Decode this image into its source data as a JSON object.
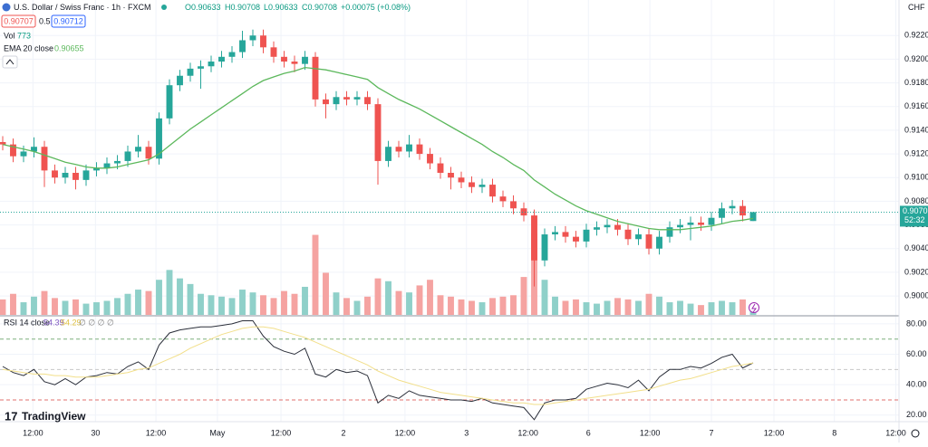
{
  "header": {
    "symbol": "U.S. Dollar / Swiss Franc · 1h · FXCM",
    "ohlc": [
      "O0.90633",
      "H0.90708",
      "L0.90633",
      "C0.90708"
    ],
    "change": "+0.00075 (+0.08%)",
    "bid": "0.90707",
    "spread": "0.5",
    "ask": "0.90712",
    "currency": "CHF",
    "countdown": "52:32",
    "rsi_extra": "∅ ∅ ∅ ∅",
    "brand": "TradingView"
  },
  "chart_data": [
    {
      "type": "candlestick",
      "open": [
        0.913,
        0.9128,
        0.9118,
        0.9122,
        0.9126,
        0.9106,
        0.91,
        0.9104,
        0.9098,
        0.9106,
        0.9108,
        0.9112,
        0.9114,
        0.9122,
        0.9126,
        0.9116,
        0.915,
        0.9178,
        0.9186,
        0.9192,
        0.9194,
        0.9198,
        0.9202,
        0.9206,
        0.9216,
        0.922,
        0.921,
        0.9202,
        0.9198,
        0.9196,
        0.9202,
        0.9166,
        0.9162,
        0.9168,
        0.9166,
        0.9168,
        0.9162,
        0.9114,
        0.9126,
        0.9122,
        0.9128,
        0.912,
        0.9112,
        0.9104,
        0.91,
        0.9096,
        0.9092,
        0.9094,
        0.9084,
        0.908,
        0.9074,
        0.9068,
        0.903,
        0.9052,
        0.9054,
        0.905,
        0.9046,
        0.9056,
        0.9058,
        0.906,
        0.9056,
        0.9048,
        0.9052,
        0.904,
        0.905,
        0.9058,
        0.906,
        0.9062,
        0.906,
        0.9066,
        0.9074,
        0.9076,
        0.90633
      ],
      "high": [
        0.9135,
        0.9133,
        0.9127,
        0.9134,
        0.9131,
        0.9111,
        0.9109,
        0.9109,
        0.9111,
        0.9113,
        0.9117,
        0.9119,
        0.9127,
        0.9136,
        0.9131,
        0.9155,
        0.9183,
        0.9191,
        0.9197,
        0.9199,
        0.9203,
        0.9207,
        0.9211,
        0.9224,
        0.9225,
        0.9225,
        0.9215,
        0.9207,
        0.9203,
        0.9207,
        0.9206,
        0.9171,
        0.9173,
        0.9173,
        0.9173,
        0.9173,
        0.9167,
        0.9131,
        0.9131,
        0.9136,
        0.9133,
        0.9125,
        0.9117,
        0.9109,
        0.9105,
        0.9101,
        0.9099,
        0.9099,
        0.9089,
        0.9085,
        0.9079,
        0.9073,
        0.9057,
        0.9059,
        0.9059,
        0.9055,
        0.9061,
        0.9063,
        0.9065,
        0.9065,
        0.9061,
        0.9057,
        0.9057,
        0.9055,
        0.9063,
        0.9065,
        0.9067,
        0.9067,
        0.9071,
        0.9079,
        0.9081,
        0.9081,
        0.90708
      ],
      "low": [
        0.9123,
        0.9113,
        0.9113,
        0.9117,
        0.9092,
        0.9095,
        0.9095,
        0.909,
        0.9093,
        0.9101,
        0.9103,
        0.9107,
        0.9109,
        0.9117,
        0.9111,
        0.9111,
        0.9145,
        0.9173,
        0.9181,
        0.9175,
        0.9189,
        0.9193,
        0.9197,
        0.9201,
        0.9211,
        0.9205,
        0.9197,
        0.9193,
        0.9189,
        0.9191,
        0.916,
        0.915,
        0.9157,
        0.9161,
        0.9161,
        0.9157,
        0.9094,
        0.9109,
        0.9117,
        0.9117,
        0.9115,
        0.9107,
        0.9099,
        0.909,
        0.9091,
        0.9087,
        0.9087,
        0.9079,
        0.9075,
        0.9069,
        0.9063,
        0.9008,
        0.9025,
        0.9047,
        0.9045,
        0.9041,
        0.9041,
        0.9051,
        0.9053,
        0.9051,
        0.9043,
        0.9043,
        0.9035,
        0.9035,
        0.9045,
        0.9053,
        0.9047,
        0.9055,
        0.9055,
        0.9061,
        0.9069,
        0.9063,
        0.90633
      ],
      "close": [
        0.9128,
        0.9118,
        0.9122,
        0.9126,
        0.9106,
        0.91,
        0.9104,
        0.9098,
        0.9106,
        0.9108,
        0.9112,
        0.9114,
        0.9122,
        0.9126,
        0.9116,
        0.915,
        0.9178,
        0.9186,
        0.9192,
        0.9194,
        0.9198,
        0.9202,
        0.9206,
        0.9216,
        0.922,
        0.921,
        0.9202,
        0.9198,
        0.9196,
        0.9202,
        0.9166,
        0.9162,
        0.9168,
        0.9166,
        0.9168,
        0.9162,
        0.9114,
        0.9126,
        0.9122,
        0.9128,
        0.912,
        0.9112,
        0.9104,
        0.91,
        0.9096,
        0.9092,
        0.9094,
        0.9084,
        0.908,
        0.9074,
        0.9068,
        0.903,
        0.9052,
        0.9054,
        0.905,
        0.9046,
        0.9056,
        0.9058,
        0.906,
        0.9056,
        0.9048,
        0.9052,
        0.904,
        0.905,
        0.9058,
        0.906,
        0.9062,
        0.906,
        0.9066,
        0.9074,
        0.9076,
        0.9068,
        0.90708
      ],
      "up_color": "#26a69a",
      "down_color": "#ef5350",
      "volume": {
        "name": "Vol",
        "up_color": "#8fd0c9",
        "down_color": "#f5a3a1",
        "values": [
          1100,
          1500,
          900,
          1300,
          1700,
          1200,
          1000,
          1100,
          800,
          900,
          1000,
          1200,
          1500,
          1800,
          1700,
          2500,
          3200,
          2600,
          2200,
          1500,
          1400,
          1300,
          1200,
          1800,
          1600,
          1400,
          1200,
          1700,
          1500,
          2000,
          5700,
          3000,
          1600,
          1200,
          1000,
          1300,
          2600,
          2400,
          1700,
          1600,
          2100,
          2500,
          1400,
          1300,
          1100,
          1000,
          900,
          1200,
          1300,
          1400,
          2700,
          5800,
          2500,
          1300,
          1000,
          1100,
          900,
          800,
          1000,
          1200,
          1100,
          1000,
          1500,
          1300,
          900,
          1000,
          800,
          700,
          900,
          1000,
          900,
          1100,
          773
        ]
      },
      "series": [
        {
          "name": "EMA 20 close",
          "color": "#5cb85c",
          "values": [
            0.9128,
            0.9126,
            0.9124,
            0.9122,
            0.9119,
            0.9116,
            0.9113,
            0.9111,
            0.9109,
            0.9108,
            0.9108,
            0.9109,
            0.9111,
            0.9113,
            0.9115,
            0.912,
            0.9127,
            0.9134,
            0.9141,
            0.9147,
            0.9153,
            0.9159,
            0.9165,
            0.9171,
            0.9177,
            0.9182,
            0.9185,
            0.9188,
            0.919,
            0.9193,
            0.9192,
            0.9191,
            0.9189,
            0.9187,
            0.9185,
            0.9183,
            0.9176,
            0.9171,
            0.9166,
            0.9162,
            0.9158,
            0.9153,
            0.9148,
            0.9143,
            0.9138,
            0.9133,
            0.9128,
            0.9122,
            0.9117,
            0.9111,
            0.9106,
            0.9098,
            0.9092,
            0.9086,
            0.9081,
            0.9076,
            0.9072,
            0.9069,
            0.9066,
            0.9063,
            0.9061,
            0.9059,
            0.9057,
            0.9056,
            0.9056,
            0.9056,
            0.9057,
            0.9058,
            0.9059,
            0.9061,
            0.9063,
            0.9064,
            0.90655
          ]
        }
      ],
      "ylim": [
        0.8984,
        0.925
      ],
      "yticks": [
        {
          "value": 0.9,
          "label": "0.90000"
        },
        {
          "value": 0.902,
          "label": "0.90200"
        },
        {
          "value": 0.904,
          "label": "0.90400"
        },
        {
          "value": 0.906,
          "label": "0.90600"
        },
        {
          "value": 0.908,
          "label": "0.90800"
        },
        {
          "value": 0.91,
          "label": "0.91000"
        },
        {
          "value": 0.912,
          "label": "0.91200"
        },
        {
          "value": 0.914,
          "label": "0.91400"
        },
        {
          "value": 0.916,
          "label": "0.91600"
        },
        {
          "value": 0.918,
          "label": "0.91800"
        },
        {
          "value": 0.92,
          "label": "0.92000"
        },
        {
          "value": 0.922,
          "label": "0.92200"
        }
      ],
      "xlim": [
        -0.26,
        86
      ],
      "xticks": [
        {
          "value": 2.9,
          "label": "12:00"
        },
        {
          "value": 8.9,
          "label": "30"
        },
        {
          "value": 14.7,
          "label": "12:00"
        },
        {
          "value": 20.6,
          "label": "May"
        },
        {
          "value": 26.7,
          "label": "12:00"
        },
        {
          "value": 32.7,
          "label": "2"
        },
        {
          "value": 38.6,
          "label": "12:00"
        },
        {
          "value": 44.5,
          "label": "3"
        },
        {
          "value": 50.4,
          "label": "12:00"
        },
        {
          "value": 56.2,
          "label": "6"
        },
        {
          "value": 62.1,
          "label": "12:00"
        },
        {
          "value": 68.0,
          "label": "7"
        },
        {
          "value": 74.0,
          "label": "12:00"
        },
        {
          "value": 79.8,
          "label": "8"
        },
        {
          "value": 85.7,
          "label": "12:00"
        }
      ],
      "grid": true
    },
    {
      "type": "line",
      "title": "RSI 14 close",
      "series": [
        {
          "color": "#2a2e39",
          "values": [
            52,
            48,
            46,
            50,
            42,
            40,
            44,
            40,
            45,
            46,
            48,
            47,
            52,
            55,
            50,
            66,
            74,
            76,
            77,
            78,
            78,
            79,
            80,
            82,
            82,
            72,
            65,
            62,
            60,
            64,
            47,
            45,
            50,
            48,
            49,
            46,
            28,
            33,
            31,
            36,
            33,
            32,
            31,
            30,
            30,
            29,
            31,
            28,
            27,
            26,
            25,
            17,
            28,
            30,
            30,
            31,
            37,
            39,
            41,
            40,
            38,
            43,
            36,
            45,
            50,
            50,
            52,
            51,
            54,
            58,
            60,
            51,
            54.39
          ]
        },
        {
          "color": "#f2df8a",
          "values": [
            50,
            49,
            48,
            47,
            47,
            46,
            46,
            45,
            45,
            45,
            46,
            47,
            48,
            50,
            51,
            54,
            57,
            60,
            64,
            67,
            70,
            73,
            75,
            77,
            78,
            78,
            77,
            75,
            73,
            71,
            68,
            65,
            62,
            59,
            56,
            53,
            49,
            46,
            43,
            41,
            39,
            37,
            35,
            34,
            33,
            32,
            31,
            30,
            29,
            28,
            28,
            27,
            27,
            28,
            29,
            30,
            31,
            32,
            33,
            34,
            35,
            36,
            37,
            39,
            41,
            43,
            44,
            46,
            48,
            50,
            52,
            53,
            54.29
          ]
        }
      ],
      "bands": [
        {
          "value": 70,
          "color": "#7fb07f"
        },
        {
          "value": 50,
          "color": "#c8c8c8"
        },
        {
          "value": 30,
          "color": "#e0706c"
        }
      ],
      "ylim": [
        16.3,
        84.7
      ],
      "yticks": [
        {
          "value": 20,
          "label": "20.00"
        },
        {
          "value": 40,
          "label": "40.00"
        },
        {
          "value": 60,
          "label": "60.00"
        },
        {
          "value": 80,
          "label": "80.00"
        }
      ],
      "grid": true
    }
  ]
}
